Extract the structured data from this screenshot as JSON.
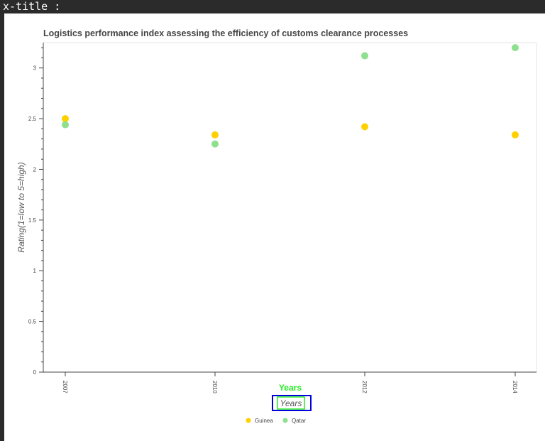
{
  "cell_header": "x-title :",
  "chart_data": {
    "type": "scatter",
    "title": "Logistics performance index assessing the efficiency of customs clearance processes",
    "xlabel": "Years",
    "xlabel_input": "Years",
    "ylabel": "Rating(1=low to 5=high)",
    "categories": [
      "2007",
      "2010",
      "2012",
      "2014"
    ],
    "y_ticks": [
      "0",
      "0.5",
      "1",
      "1.5",
      "2",
      "2.5",
      "3"
    ],
    "ylim": [
      0,
      3.25
    ],
    "series": [
      {
        "name": "Guinea",
        "color": "#ffd000",
        "values": [
          2.5,
          2.34,
          2.42,
          2.34
        ]
      },
      {
        "name": "Qatar",
        "color": "#8ee08e",
        "values": [
          2.44,
          2.25,
          3.12,
          3.2
        ]
      }
    ],
    "legend_position": "bottom-center",
    "grid": false
  }
}
